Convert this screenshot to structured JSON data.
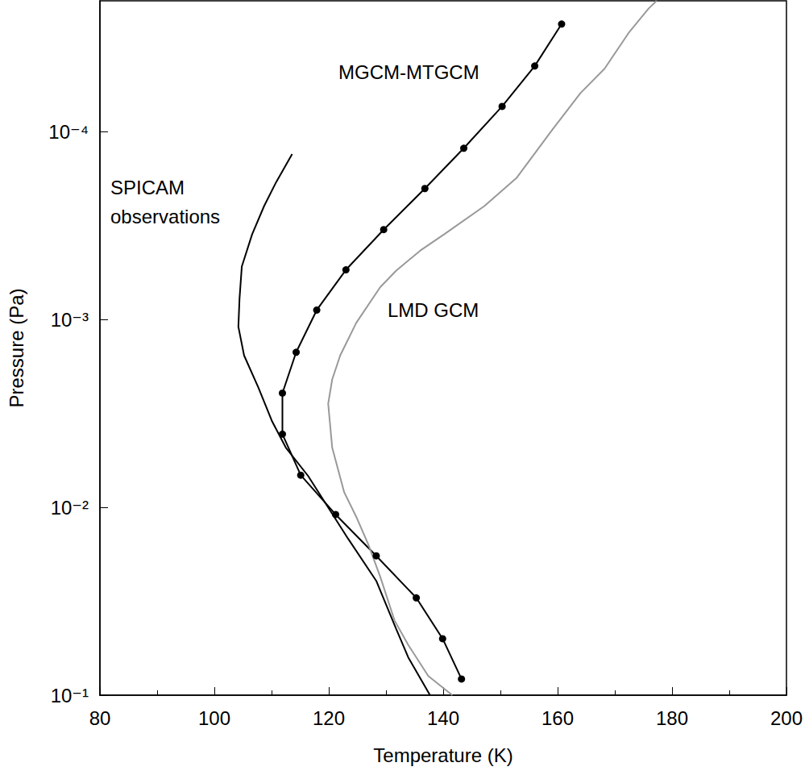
{
  "chart_data": {
    "type": "line",
    "x_label": "Temperature (K)",
    "y_label": "Pressure (Pa)",
    "xlim": [
      80,
      200
    ],
    "xticks": [
      80,
      100,
      120,
      140,
      160,
      180,
      200
    ],
    "ylim": [
      2e-05,
      0.1
    ],
    "yticks": [
      {
        "value": 0.0001,
        "label": "10⁻⁴"
      },
      {
        "value": 0.001,
        "label": "10⁻³"
      },
      {
        "value": 0.01,
        "label": "10⁻²"
      },
      {
        "value": 0.1,
        "label": "10⁻¹"
      }
    ],
    "log": "y",
    "grid": false,
    "series": [
      {
        "name": "MGCM-MTGCM",
        "color": "#000000",
        "marker": "circle",
        "line_style": "solid",
        "x": [
          143.2,
          139.9,
          135.3,
          128.3,
          121.2,
          115.1,
          111.9,
          111.9,
          114.3,
          117.9,
          123.0,
          129.6,
          136.8,
          143.6,
          150.3,
          156.0,
          160.7
        ],
        "values": [
          0.082,
          0.05,
          0.0303,
          0.0181,
          0.0109,
          0.00673,
          0.00407,
          0.00246,
          0.00149,
          0.000888,
          0.000542,
          0.000331,
          0.0002,
          0.000122,
          7.3e-05,
          4.45e-05,
          2.66e-05
        ]
      },
      {
        "name": "SPICAM\nobservations",
        "color": "#000000",
        "line_style": "solid",
        "x": [
          137.7,
          133.9,
          131.8,
          128.3,
          123.4,
          119.9,
          116.4,
          112.5,
          110.1,
          107.7,
          105.2,
          104.2,
          104.4,
          104.8,
          106.6,
          108.7,
          110.8,
          113.6
        ],
        "values": [
          0.1,
          0.0629,
          0.0445,
          0.0246,
          0.0147,
          0.01,
          0.0068,
          0.0048,
          0.00348,
          0.0023,
          0.00155,
          0.00109,
          0.000773,
          0.000521,
          0.000351,
          0.000248,
          0.000185,
          0.000131
        ]
      },
      {
        "name": "LMD GCM",
        "color": "#999999",
        "line_style": "solid",
        "x": [
          141.6,
          137.4,
          133.9,
          131.5,
          129.0,
          126.9,
          124.8,
          122.7,
          120.6,
          119.9,
          120.6,
          122.0,
          124.8,
          129.0,
          131.8,
          136.0,
          140.2,
          147.2,
          152.8,
          159.1,
          164.0,
          168.2,
          172.4,
          175.9,
          177.3
        ],
        "values": [
          0.1,
          0.079,
          0.054,
          0.04,
          0.0234,
          0.0157,
          0.0112,
          0.0083,
          0.0048,
          0.0028,
          0.00208,
          0.00155,
          0.00104,
          0.00067,
          0.000547,
          0.000428,
          0.00035,
          0.000248,
          0.000176,
          9.7e-05,
          6.2e-05,
          4.6e-05,
          2.97e-05,
          2.2e-05,
          2e-05
        ]
      }
    ]
  }
}
